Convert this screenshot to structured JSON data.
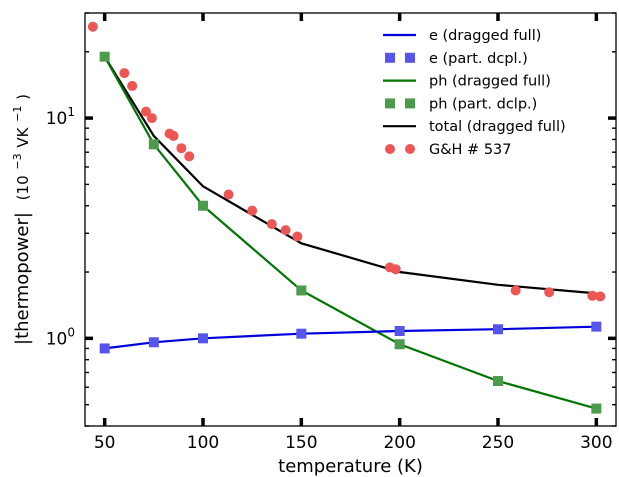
{
  "chart_data": {
    "type": "line",
    "xlabel": "temperature (K)",
    "ylabel_main": "|thermopower|",
    "ylabel_unit": "(10",
    "ylabel_exp": "−3",
    "ylabel_unit2": "VK",
    "ylabel_exp2": "−1",
    "ylabel_close": ")",
    "xlim": [
      40,
      310
    ],
    "ylim": [
      0.4,
      30
    ],
    "yscale": "log",
    "grid": false,
    "legend_position": "top-right",
    "x_ticks": [
      {
        "value": 50,
        "label": "50"
      },
      {
        "value": 100,
        "label": "100"
      },
      {
        "value": 150,
        "label": "150"
      },
      {
        "value": 200,
        "label": "200"
      },
      {
        "value": 250,
        "label": "250"
      },
      {
        "value": 300,
        "label": "300"
      }
    ],
    "y_ticks": [
      {
        "value": 1,
        "base": "10",
        "exp": "0"
      },
      {
        "value": 10,
        "base": "10",
        "exp": "1"
      }
    ],
    "series": [
      {
        "name": "e (dragged full)",
        "kind": "line",
        "color": "#0000dd",
        "x": [
          50,
          75,
          100,
          150,
          200,
          250,
          300
        ],
        "y": [
          0.9,
          0.96,
          1.0,
          1.05,
          1.08,
          1.1,
          1.13
        ]
      },
      {
        "name": "e (part. dcpl.)",
        "kind": "square",
        "color": "#5555ee",
        "x": [
          50,
          75,
          100,
          150,
          200,
          250,
          300
        ],
        "y": [
          0.9,
          0.96,
          1.0,
          1.05,
          1.08,
          1.1,
          1.13
        ]
      },
      {
        "name": "ph (dragged full)",
        "kind": "line",
        "color": "#007700",
        "x": [
          50,
          75,
          100,
          150,
          200,
          250,
          300
        ],
        "y": [
          19.0,
          7.6,
          4.0,
          1.65,
          0.94,
          0.64,
          0.48
        ]
      },
      {
        "name": "ph (part. dclp.)",
        "kind": "square",
        "color": "#4c9a4c",
        "x": [
          50,
          75,
          100,
          150,
          200,
          250,
          300
        ],
        "y": [
          19.0,
          7.6,
          4.0,
          1.65,
          0.94,
          0.64,
          0.48
        ]
      },
      {
        "name": "total (dragged full)",
        "kind": "line",
        "color": "#000000",
        "x": [
          50,
          75,
          100,
          150,
          200,
          250,
          300
        ],
        "y": [
          19.0,
          8.3,
          4.9,
          2.7,
          2.0,
          1.75,
          1.6
        ]
      },
      {
        "name": "G&H # 537",
        "kind": "circle",
        "color": "#ee5555",
        "x": [
          44,
          60,
          64,
          71,
          74,
          83,
          85,
          89,
          93,
          113,
          125,
          135,
          142,
          148,
          195,
          198,
          259,
          276,
          298,
          302
        ],
        "y": [
          26.0,
          16.0,
          14.0,
          10.7,
          10.0,
          8.5,
          8.3,
          7.3,
          6.7,
          4.5,
          3.8,
          3.3,
          3.1,
          2.9,
          2.1,
          2.06,
          1.65,
          1.62,
          1.56,
          1.55
        ]
      }
    ]
  }
}
